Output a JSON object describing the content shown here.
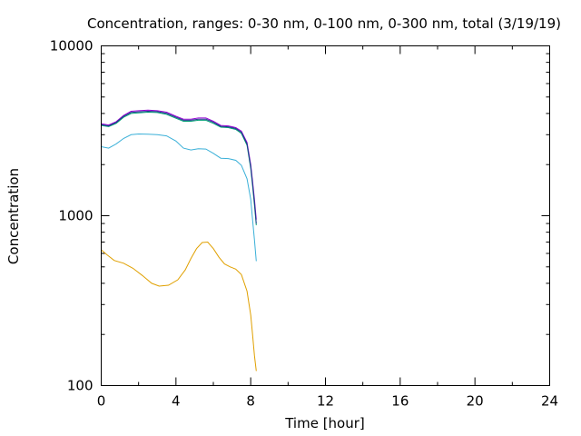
{
  "chart_data": {
    "type": "line",
    "title": "Concentration, ranges: 0-30 nm, 0-100 nm, 0-300 nm, total (3/19/19)",
    "xlabel": "Time [hour]",
    "ylabel": "Concentration",
    "xlim": [
      0,
      24
    ],
    "ylim": [
      100,
      10000
    ],
    "yscale": "log",
    "grid": false,
    "legend": "none",
    "xticks": [
      0,
      4,
      8,
      12,
      16,
      20,
      24
    ],
    "xtick_labels": [
      "0",
      "4",
      "8",
      "12",
      "16",
      "20",
      "24"
    ],
    "yticks": [
      100,
      1000,
      10000
    ],
    "ytick_labels": [
      "100",
      "1000",
      "10000"
    ],
    "series": [
      {
        "color": "#e0a000",
        "x": [
          0,
          0.3,
          0.7,
          1.2,
          1.7,
          2.2,
          2.7,
          3.1,
          3.6,
          4.1,
          4.5,
          4.8,
          5.1,
          5.4,
          5.7,
          6.0,
          6.3,
          6.6,
          6.9,
          7.2,
          7.5,
          7.8,
          8.0,
          8.1,
          8.2,
          8.3
        ],
        "y": [
          630,
          590,
          545,
          525,
          490,
          445,
          400,
          385,
          390,
          420,
          480,
          560,
          640,
          695,
          700,
          640,
          570,
          520,
          500,
          485,
          450,
          360,
          260,
          200,
          150,
          122
        ]
      },
      {
        "color": "#3ab0d8",
        "x": [
          0,
          0.4,
          0.8,
          1.2,
          1.6,
          2.0,
          2.5,
          3.0,
          3.5,
          4.0,
          4.4,
          4.8,
          5.2,
          5.6,
          6.0,
          6.4,
          6.8,
          7.2,
          7.5,
          7.8,
          8.0,
          8.1,
          8.2,
          8.3
        ],
        "y": [
          2550,
          2500,
          2650,
          2850,
          3000,
          3030,
          3020,
          3000,
          2950,
          2750,
          2500,
          2440,
          2480,
          2470,
          2330,
          2180,
          2170,
          2120,
          1980,
          1650,
          1250,
          950,
          720,
          540
        ]
      },
      {
        "color": "#009e73",
        "x": [
          0,
          0.4,
          0.8,
          1.2,
          1.6,
          2.0,
          2.5,
          3.0,
          3.5,
          4.0,
          4.4,
          4.8,
          5.2,
          5.6,
          6.0,
          6.4,
          6.8,
          7.2,
          7.5,
          7.8,
          8.0,
          8.1,
          8.2,
          8.3
        ],
        "y": [
          3400,
          3350,
          3500,
          3800,
          4000,
          4030,
          4070,
          4050,
          3950,
          3750,
          3600,
          3600,
          3650,
          3650,
          3500,
          3320,
          3300,
          3220,
          3050,
          2600,
          1900,
          1500,
          1150,
          880
        ]
      },
      {
        "color": "#9400d3",
        "x": [
          0,
          0.4,
          0.8,
          1.2,
          1.6,
          2.0,
          2.5,
          3.0,
          3.5,
          4.0,
          4.4,
          4.8,
          5.2,
          5.6,
          6.0,
          6.4,
          6.8,
          7.2,
          7.5,
          7.8,
          8.0,
          8.1,
          8.2,
          8.3
        ],
        "y": [
          3480,
          3420,
          3580,
          3900,
          4120,
          4150,
          4180,
          4150,
          4070,
          3850,
          3700,
          3700,
          3760,
          3760,
          3600,
          3400,
          3380,
          3300,
          3150,
          2700,
          2000,
          1600,
          1250,
          950
        ]
      },
      {
        "color": "#1f3b8c",
        "x": [
          0,
          0.4,
          0.8,
          1.2,
          1.6,
          2.0,
          2.5,
          3.0,
          3.5,
          4.0,
          4.4,
          4.8,
          5.2,
          5.6,
          6.0,
          6.4,
          6.8,
          7.2,
          7.5,
          7.8,
          8.0,
          8.1,
          8.2,
          8.3
        ],
        "y": [
          3440,
          3380,
          3540,
          3850,
          4060,
          4090,
          4120,
          4100,
          4010,
          3800,
          3650,
          3650,
          3700,
          3700,
          3550,
          3360,
          3340,
          3260,
          3100,
          2650,
          1950,
          1550,
          1200,
          900
        ]
      }
    ]
  }
}
